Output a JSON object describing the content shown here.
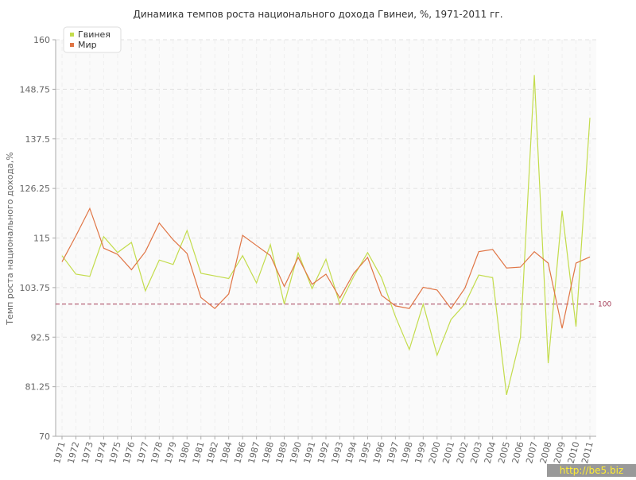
{
  "chart_data": {
    "type": "line",
    "title": "Динамика темпов роста национального дохода Гвинеи, %, 1971-2011 гг.",
    "y_label": "Темп роста национального дохода,%",
    "categories": [
      "1971",
      "1972",
      "1973",
      "1974",
      "1975",
      "1976",
      "1977",
      "1978",
      "1979",
      "1980",
      "1981",
      "1982",
      "1984",
      "1986",
      "1987",
      "1988",
      "1989",
      "1990",
      "1991",
      "1992",
      "1993",
      "1994",
      "1995",
      "1996",
      "1997",
      "1998",
      "1999",
      "2000",
      "2001",
      "2002",
      "2003",
      "2004",
      "2005",
      "2006",
      "2007",
      "2008",
      "2009",
      "2010",
      "2011"
    ],
    "series": [
      {
        "name": "Гвинея",
        "color": "#c3dc4c",
        "values": [
          111,
          106.8,
          106.3,
          115.3,
          111.7,
          114,
          103,
          110,
          109,
          116.7,
          107,
          106.4,
          105.8,
          111,
          104.8,
          113.5,
          100,
          111.6,
          103.5,
          110.2,
          100,
          106.3,
          111.7,
          106,
          97.2,
          89.7,
          100,
          88.4,
          96.5,
          100,
          106.6,
          106,
          79.4,
          92.4,
          152,
          86.6,
          121.2,
          94.9,
          142.3
        ]
      },
      {
        "name": "Мир",
        "color": "#e07545",
        "values": [
          109.6,
          115.5,
          121.7,
          112.7,
          111.3,
          107.8,
          111.9,
          118.4,
          114.6,
          111.5,
          101.5,
          99,
          102.3,
          115.6,
          113.3,
          111,
          104,
          110.6,
          104.5,
          106.8,
          101.4,
          107,
          110.6,
          102,
          99.6,
          99,
          103.8,
          103.2,
          99,
          103.6,
          111.9,
          112.4,
          108.2,
          108.4,
          111.9,
          109.3,
          94.5,
          109.3,
          110.7
        ]
      }
    ],
    "ylim": [
      70,
      160
    ],
    "yticks": [
      70,
      81.25,
      92.5,
      103.75,
      115,
      126.25,
      137.5,
      148.75,
      160
    ],
    "grid": true,
    "reference_line": 100,
    "legend": "top-left",
    "watermark": "http://be5.biz"
  }
}
